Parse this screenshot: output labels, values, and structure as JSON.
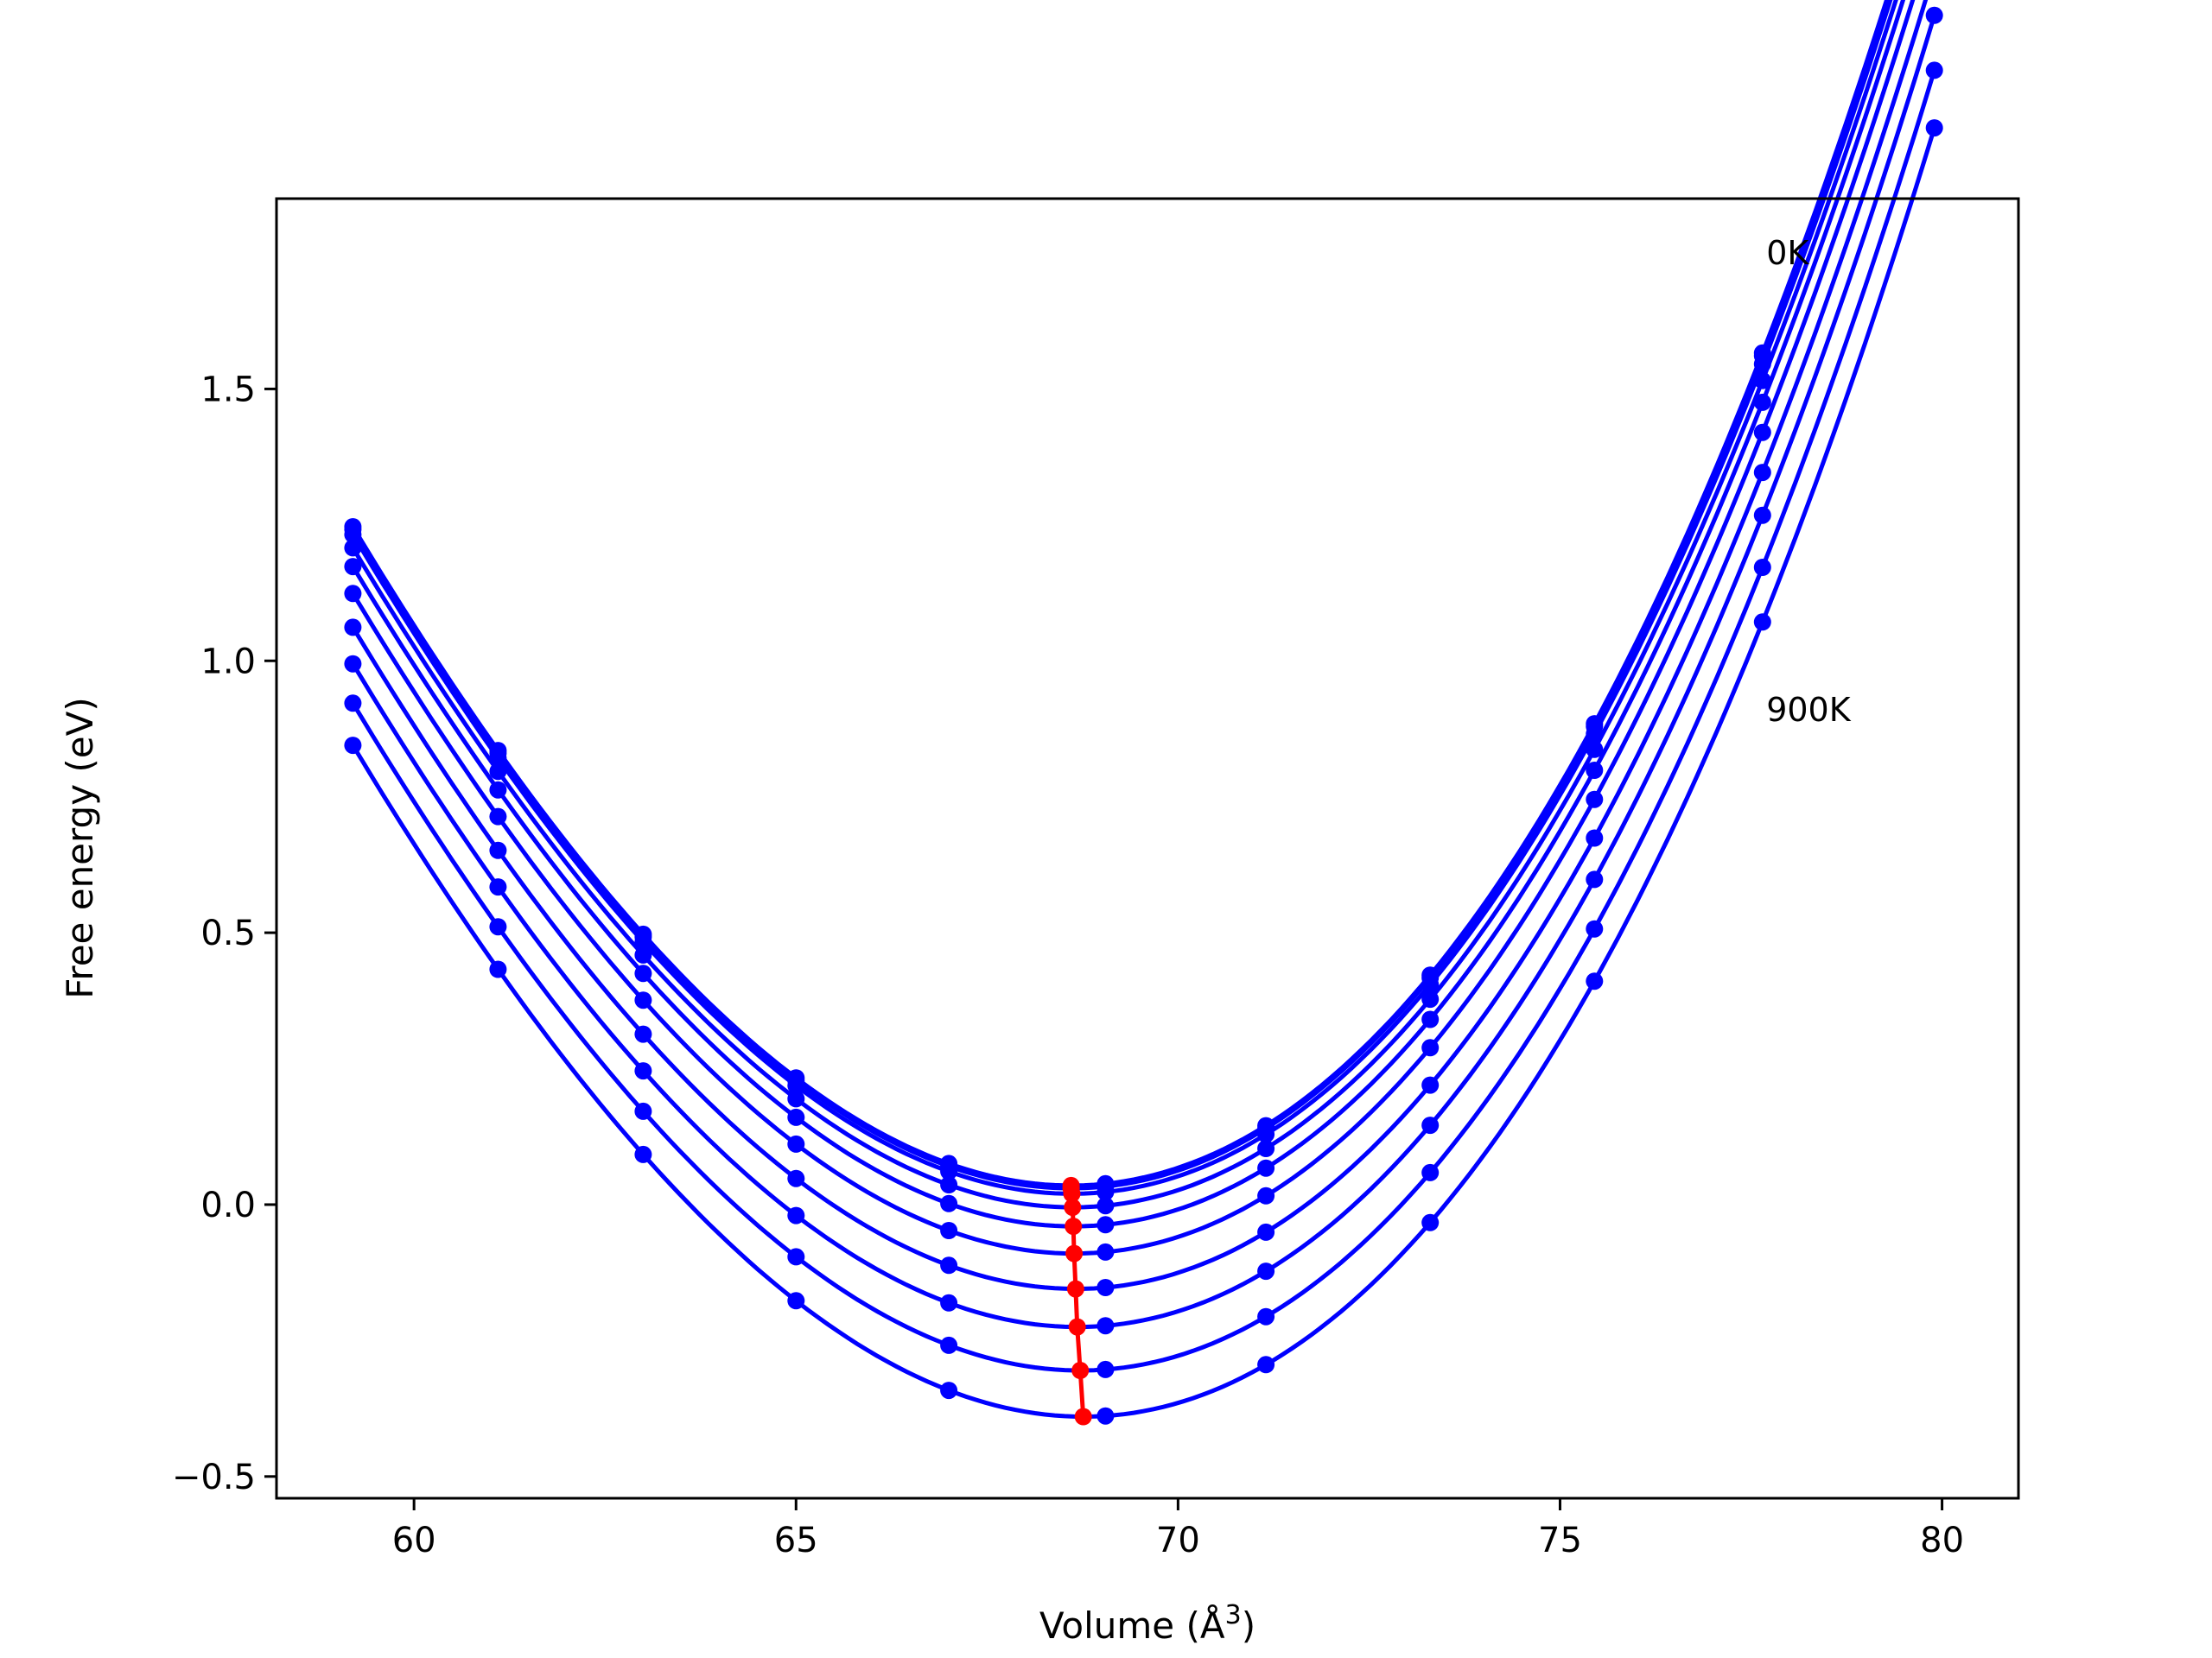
{
  "chart_data": {
    "type": "scatter",
    "xlabel": "Volume (Å",
    "xlabel_sup": "3",
    "xlabel_close": ")",
    "ylabel": "Free energy (eV)",
    "xlim": [
      58.2,
      81.0
    ],
    "ylim": [
      -0.54,
      1.85
    ],
    "x_ticks": [
      60,
      65,
      70,
      75,
      80
    ],
    "y_ticks": [
      -0.5,
      0.0,
      0.5,
      1.0,
      1.5
    ],
    "x_tick_labels": [
      "60",
      "65",
      "70",
      "75",
      "80"
    ],
    "y_tick_labels": [
      "−0.5",
      "0.0",
      "0.5",
      "1.0",
      "1.5"
    ],
    "grid": false,
    "annotations": [
      {
        "text": "0K",
        "x": 77.7,
        "y": 1.75
      },
      {
        "text": "900K",
        "x": 77.7,
        "y": 0.91
      }
    ],
    "volumes": [
      59.2,
      61.1,
      63.0,
      65.0,
      67.0,
      69.05,
      71.15,
      73.3,
      75.45,
      77.65,
      79.9
    ],
    "curves": [
      {
        "v0": 68.6,
        "e0": 0.035,
        "a": 0.01625,
        "b": 0.00027
      },
      {
        "v0": 68.6,
        "e0": 0.03,
        "a": 0.01625,
        "b": 0.00027
      },
      {
        "v0": 68.61,
        "e0": 0.02,
        "a": 0.01623,
        "b": 0.00027
      },
      {
        "v0": 68.62,
        "e0": -0.005,
        "a": 0.01621,
        "b": 0.00027
      },
      {
        "v0": 68.63,
        "e0": -0.04,
        "a": 0.01619,
        "b": 0.00027
      },
      {
        "v0": 68.64,
        "e0": -0.09,
        "a": 0.01617,
        "b": 0.00027
      },
      {
        "v0": 68.66,
        "e0": -0.155,
        "a": 0.01615,
        "b": 0.00027
      },
      {
        "v0": 68.68,
        "e0": -0.225,
        "a": 0.01613,
        "b": 0.00027
      },
      {
        "v0": 68.72,
        "e0": -0.305,
        "a": 0.01611,
        "b": 0.00027
      },
      {
        "v0": 68.76,
        "e0": -0.39,
        "a": 0.01609,
        "b": 0.00027
      }
    ],
    "minima_line": {
      "color": "#ff0000",
      "x": [
        68.6,
        68.6,
        68.61,
        68.62,
        68.63,
        68.64,
        68.66,
        68.68,
        68.72,
        68.76
      ],
      "y": [
        0.035,
        0.03,
        0.02,
        -0.005,
        -0.04,
        -0.09,
        -0.155,
        -0.225,
        -0.305,
        -0.39
      ]
    },
    "series_color": "#0000ff",
    "curve_range": [
      59.2,
      79.9
    ]
  }
}
